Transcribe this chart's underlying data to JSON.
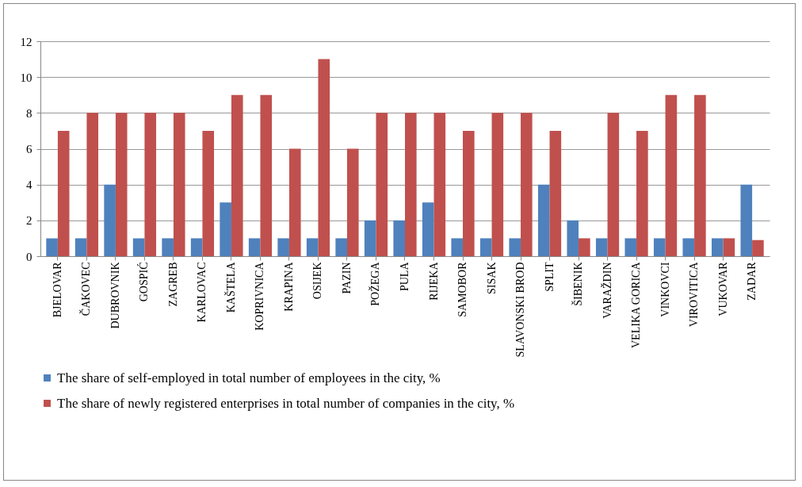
{
  "chart_data": {
    "type": "bar",
    "categories": [
      "BJELOVAR",
      "ČAKOVEC",
      "DUBROVNIK",
      "GOSPIĆ",
      "ZAGREB",
      "KARLOVAC",
      "KAŠTELA",
      "KOPRIVNICA",
      "KRAPINA",
      "OSIJEK",
      "PAZIN",
      "POŽEGA",
      "PULA",
      "RIJEKA",
      "SAMOBOR",
      "SISAK",
      "SLAVONSKI BROD",
      "SPLIT",
      "ŠIBENIK",
      "VARAŽDIN",
      "VELIKA GORICA",
      "VINKOVCI",
      "VIROVITICA",
      "VUKOVAR",
      "ZADAR"
    ],
    "series": [
      {
        "name": "The share of self-employed in total number of employees in the city, %",
        "color": "#4f81bd",
        "values": [
          1,
          1,
          4,
          1,
          1,
          1,
          3,
          1,
          1,
          1,
          1,
          2,
          2,
          3,
          1,
          1,
          1,
          4,
          2,
          1,
          1,
          1,
          1,
          1,
          4
        ]
      },
      {
        "name": "The share of newly registered enterprises in total number of companies in the city, %",
        "color": "#c0504d",
        "values": [
          7,
          8,
          8,
          8,
          8,
          7,
          9,
          9,
          6,
          11,
          6,
          8,
          8,
          8,
          7,
          8,
          8,
          7,
          1,
          8,
          7,
          9,
          9,
          1,
          0.9
        ]
      }
    ],
    "ylim": [
      0,
      12
    ],
    "yticks": [
      0,
      2,
      4,
      6,
      8,
      10,
      12
    ],
    "grid": "y",
    "legend": "bottom"
  }
}
